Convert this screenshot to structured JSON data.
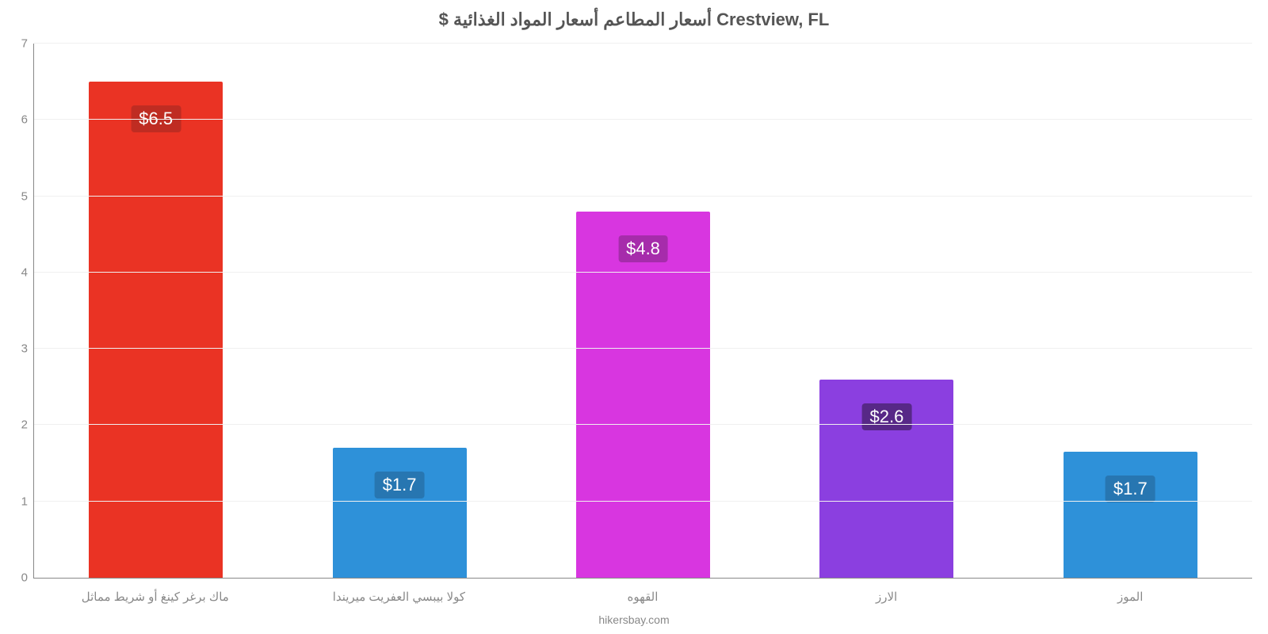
{
  "chart": {
    "type": "bar",
    "title": "$ أسعار المطاعم أسعار المواد الغذائية Crestview, FL",
    "title_fontsize": 22,
    "title_color": "#555555",
    "source": "hikersbay.com",
    "source_color": "#888888",
    "background_color": "#ffffff",
    "grid_color": "#f0f0f0",
    "axis_color": "#888888",
    "axis_label_color": "#888888",
    "axis_label_fontsize": 15,
    "ylim": [
      0,
      7
    ],
    "yticks": [
      0,
      1,
      2,
      3,
      4,
      5,
      6,
      7
    ],
    "bar_width_pct": 55,
    "value_label_fontsize": 22,
    "value_label_color": "#ffffff",
    "series": [
      {
        "label": "ماك برغر كينغ أو شريط مماثل",
        "value": 6.5,
        "value_text": "$6.5",
        "bar_color": "#ea3324",
        "badge_color": "#bf2c22"
      },
      {
        "label": "كولا بيبسي العفريت ميريندا",
        "value": 1.7,
        "value_text": "$1.7",
        "bar_color": "#2e91d9",
        "badge_color": "#2776b1"
      },
      {
        "label": "القهوه",
        "value": 4.8,
        "value_text": "$4.8",
        "bar_color": "#d836e0",
        "badge_color": "#a62cab"
      },
      {
        "label": "الارز",
        "value": 2.6,
        "value_text": "$2.6",
        "bar_color": "#8b3fe0",
        "badge_color": "#572887"
      },
      {
        "label": "الموز",
        "value": 1.65,
        "value_text": "$1.7",
        "bar_color": "#2e91d9",
        "badge_color": "#2776b1"
      }
    ]
  }
}
